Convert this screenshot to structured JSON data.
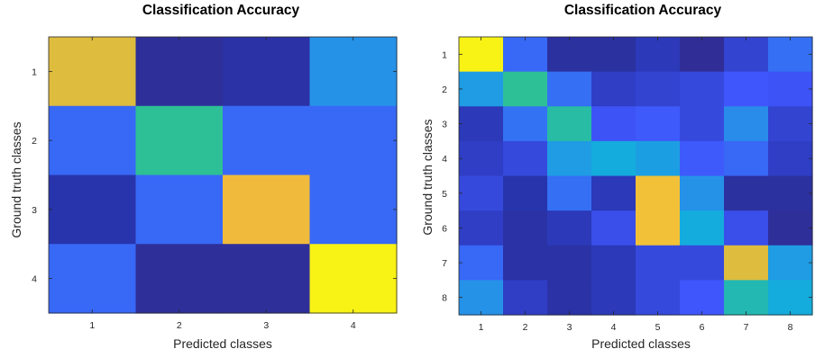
{
  "chart_data": [
    {
      "type": "heatmap",
      "title": "Classification Accuracy",
      "xlabel": "Predicted classes",
      "ylabel": "Ground truth classes",
      "x_ticks": [
        "1",
        "2",
        "3",
        "4"
      ],
      "y_ticks": [
        "1",
        "2",
        "3",
        "4"
      ],
      "colormap": "parula",
      "values": [
        [
          0.8,
          0.06,
          0.1,
          0.42
        ],
        [
          0.3,
          0.6,
          0.3,
          0.3
        ],
        [
          0.12,
          0.3,
          0.82,
          0.3
        ],
        [
          0.3,
          0.06,
          0.06,
          0.98
        ]
      ]
    },
    {
      "type": "heatmap",
      "title": "Classification Accuracy",
      "xlabel": "Predicted classes",
      "ylabel": "Ground truth classes",
      "x_ticks": [
        "1",
        "2",
        "3",
        "4",
        "5",
        "6",
        "7",
        "8"
      ],
      "y_ticks": [
        "1",
        "2",
        "3",
        "4",
        "5",
        "6",
        "7",
        "8"
      ],
      "colormap": "parula",
      "values": [
        [
          0.98,
          0.3,
          0.08,
          0.08,
          0.14,
          0.05,
          0.18,
          0.32
        ],
        [
          0.45,
          0.6,
          0.32,
          0.16,
          0.18,
          0.2,
          0.25,
          0.24
        ],
        [
          0.14,
          0.33,
          0.58,
          0.24,
          0.26,
          0.2,
          0.4,
          0.18
        ],
        [
          0.16,
          0.2,
          0.45,
          0.5,
          0.46,
          0.26,
          0.3,
          0.16
        ],
        [
          0.2,
          0.12,
          0.32,
          0.14,
          0.84,
          0.42,
          0.08,
          0.08
        ],
        [
          0.16,
          0.1,
          0.14,
          0.22,
          0.84,
          0.5,
          0.22,
          0.06
        ],
        [
          0.3,
          0.1,
          0.1,
          0.14,
          0.2,
          0.2,
          0.8,
          0.45
        ],
        [
          0.42,
          0.16,
          0.1,
          0.14,
          0.2,
          0.25,
          0.56,
          0.5
        ]
      ]
    }
  ]
}
